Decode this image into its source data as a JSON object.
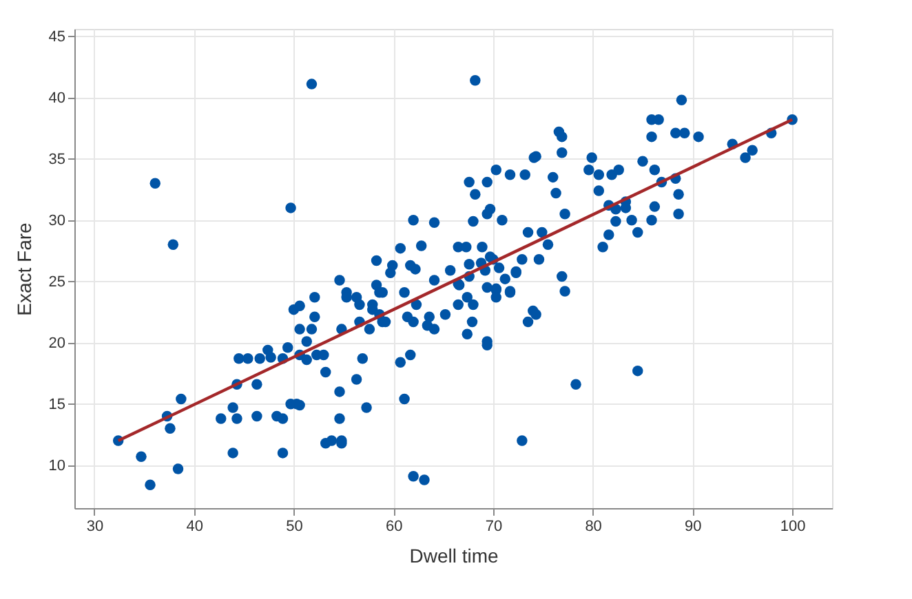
{
  "chart_data": {
    "type": "scatter",
    "xlabel": "Dwell time",
    "ylabel": "Exact Fare",
    "xlim": [
      28,
      104
    ],
    "ylim": [
      6.5,
      45.6
    ],
    "xticks": [
      30,
      40,
      50,
      60,
      70,
      80,
      90,
      100
    ],
    "yticks": [
      10,
      15,
      20,
      25,
      30,
      35,
      40,
      45
    ],
    "grid": true,
    "series": [
      {
        "marker": "circle",
        "color": "#0054a6",
        "x": [
          32.4,
          34.7,
          35.6,
          38.4,
          38.7,
          37.3,
          37.6,
          42.7,
          43.9,
          44.3,
          43.9,
          44.3,
          44.5,
          45.4,
          46.3,
          46.3,
          46.6,
          47.4,
          47.7,
          48.3,
          48.9,
          48.9,
          48.9,
          49.4,
          49.7,
          50.0,
          50.3,
          50.6,
          50.6,
          50.6,
          50.6,
          51.3,
          51.3,
          51.8,
          52.1,
          52.1,
          52.3,
          53.0,
          53.2,
          53.2,
          53.8,
          54.8,
          54.8,
          54.6,
          54.6,
          54.6,
          54.8,
          55.3,
          55.3,
          56.3,
          56.6,
          56.3,
          56.6,
          56.9,
          57.3,
          57.6,
          57.9,
          57.9,
          58.3,
          58.6,
          58.6,
          58.9,
          58.9,
          59.7,
          59.2,
          60.7,
          61.1,
          61.1,
          61.4,
          61.7,
          62.0,
          62.0,
          63.1,
          62.3,
          62.2,
          64.1,
          63.6,
          63.4,
          64.1,
          65.2,
          65.7,
          36.1,
          37.9,
          49.7,
          51.8,
          58.3,
          59.9,
          60.7,
          62.0,
          61.7,
          62.8,
          64.1,
          68.2,
          88.9,
          85.9,
          86.6,
          85.9,
          88.3,
          89.2,
          90.6,
          100.0,
          97.9,
          94.0,
          95.3,
          96.0,
          76.6,
          76.9,
          76.9,
          76.0,
          76.3,
          77.2,
          79.9,
          79.6,
          80.6,
          81.9,
          82.6,
          80.6,
          85.0,
          86.2,
          86.9,
          88.3,
          88.6,
          88.6,
          86.2,
          85.9,
          84.5,
          83.9,
          83.3,
          83.3,
          82.3,
          81.6,
          82.3,
          81.6,
          81.0,
          74.1,
          74.3,
          73.2,
          71.7,
          70.3,
          69.4,
          67.6,
          68.2,
          68.0,
          69.4,
          69.7,
          70.9,
          73.5,
          74.9,
          75.5,
          74.6,
          72.9,
          72.3,
          71.2,
          70.6,
          70.0,
          69.7,
          68.9,
          66.5,
          67.3,
          67.6,
          68.8,
          69.2,
          66.5,
          67.6,
          69.4,
          70.3,
          71.7,
          76.9,
          77.2,
          66.6,
          67.4,
          68.0,
          66.5,
          67.9,
          67.4,
          70.3,
          70.3,
          71.7,
          72.3,
          69.4,
          69.4,
          73.5,
          74.0,
          74.3,
          78.3,
          84.5,
          72.9
        ],
        "values": [
          12.0,
          10.7,
          8.4,
          9.7,
          15.4,
          14.0,
          13.0,
          13.8,
          14.7,
          13.8,
          11.0,
          16.6,
          18.7,
          18.7,
          16.6,
          14.0,
          18.7,
          19.4,
          18.8,
          14.0,
          13.8,
          18.7,
          11.0,
          19.6,
          15.0,
          22.7,
          15.0,
          23.0,
          14.9,
          21.1,
          19.0,
          20.1,
          18.6,
          21.1,
          22.1,
          23.7,
          19.0,
          19.0,
          17.6,
          11.8,
          12.0,
          12.0,
          11.8,
          16.0,
          13.8,
          25.1,
          21.1,
          24.1,
          23.7,
          23.7,
          23.1,
          17.0,
          21.7,
          18.7,
          14.7,
          21.1,
          23.1,
          22.7,
          24.7,
          22.3,
          24.1,
          24.1,
          21.7,
          25.7,
          21.7,
          18.4,
          24.1,
          15.4,
          22.1,
          19.0,
          21.7,
          9.1,
          8.8,
          23.1,
          26.0,
          25.1,
          22.1,
          21.4,
          21.1,
          22.3,
          25.9,
          33.0,
          28.0,
          31.0,
          41.1,
          26.7,
          26.3,
          27.7,
          30.0,
          26.3,
          27.9,
          29.8,
          41.4,
          39.8,
          38.2,
          38.2,
          36.8,
          37.1,
          37.1,
          36.8,
          38.2,
          37.1,
          36.2,
          35.1,
          35.7,
          37.2,
          36.8,
          35.5,
          33.5,
          32.2,
          30.5,
          35.1,
          34.1,
          33.7,
          33.7,
          34.1,
          32.4,
          34.8,
          34.1,
          33.1,
          33.4,
          32.1,
          30.5,
          31.1,
          30.0,
          29.0,
          30.0,
          31.5,
          31.0,
          30.9,
          31.2,
          29.9,
          28.8,
          27.8,
          35.1,
          35.2,
          33.7,
          33.7,
          34.1,
          33.1,
          33.1,
          32.1,
          29.9,
          30.5,
          30.9,
          30.0,
          29.0,
          29.0,
          28.0,
          26.8,
          26.8,
          25.8,
          25.2,
          26.1,
          26.8,
          27.0,
          27.8,
          27.8,
          27.8,
          26.4,
          26.5,
          25.9,
          24.8,
          25.4,
          24.5,
          24.4,
          24.2,
          25.4,
          24.2,
          24.7,
          23.7,
          23.1,
          23.1,
          21.7,
          20.7,
          24.3,
          23.7,
          24.1,
          25.7,
          20.1,
          19.8,
          21.7,
          22.6,
          22.3,
          16.6,
          17.7,
          12.0
        ]
      },
      {
        "type": "line",
        "marker": "none",
        "color": "#a4282a",
        "x": [
          32.4,
          100
        ],
        "values": [
          12.0,
          38.2
        ]
      }
    ]
  }
}
